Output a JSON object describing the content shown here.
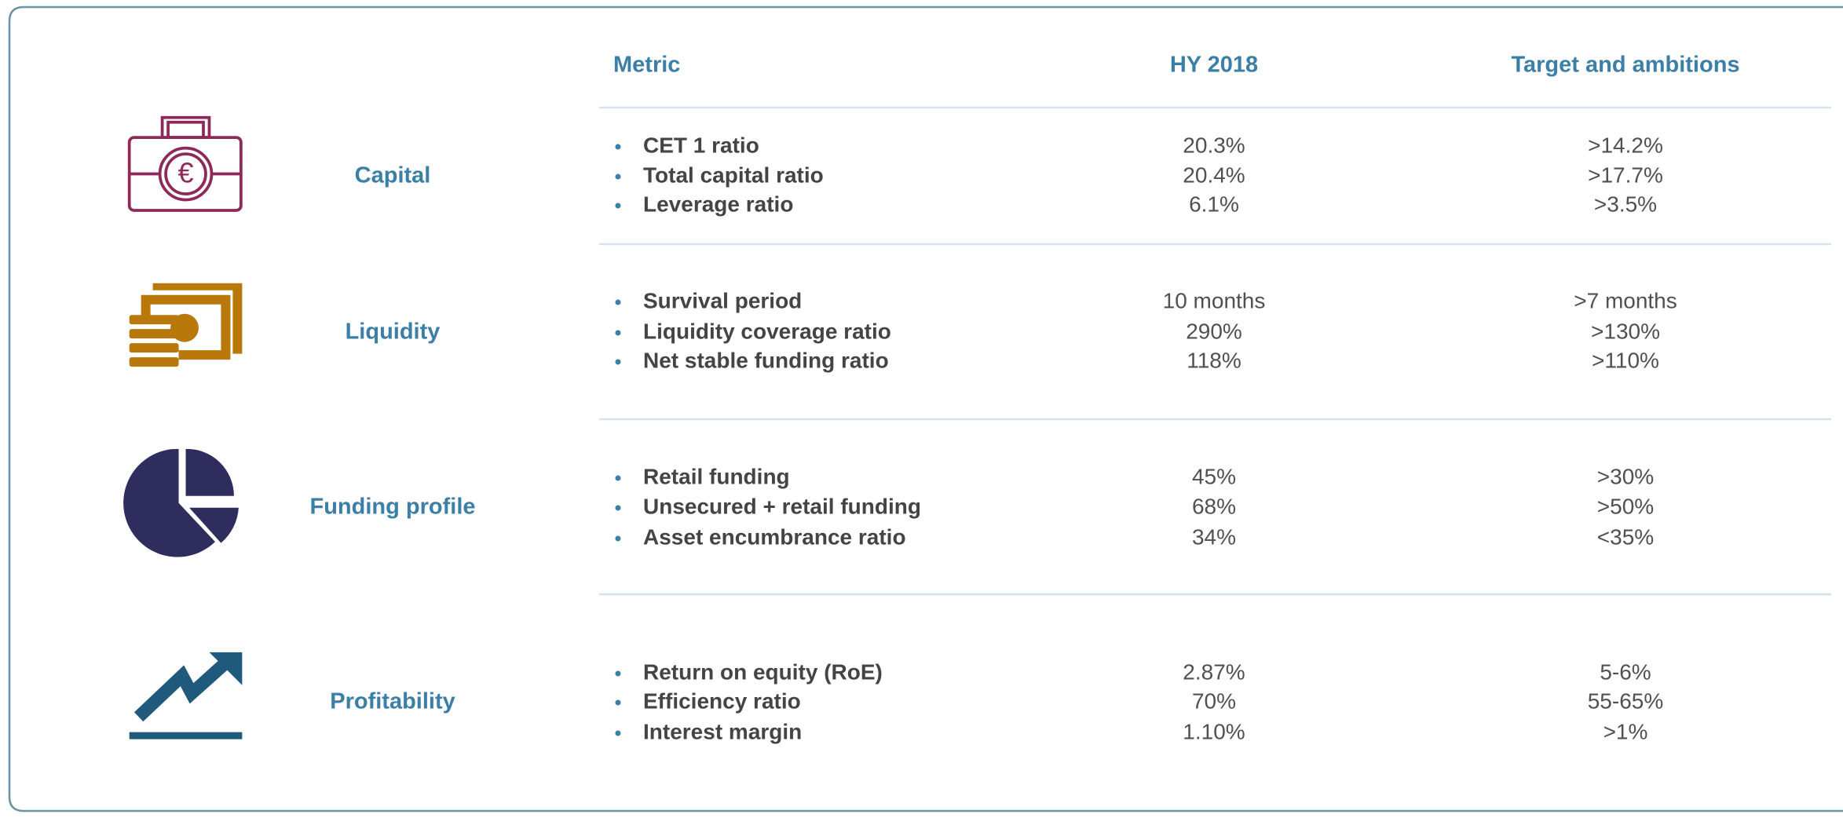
{
  "header": {
    "metric": "Metric",
    "hy": "HY 2018",
    "target": "Target and ambitions"
  },
  "sections": [
    {
      "label": "Capital",
      "rows": [
        [
          "CET 1 ratio",
          "20.3%",
          ">14.2%"
        ],
        [
          "Total capital ratio",
          "20.4%",
          ">17.7%"
        ],
        [
          "Leverage ratio",
          "6.1%",
          ">3.5%"
        ]
      ]
    },
    {
      "label": "Liquidity",
      "rows": [
        [
          "Survival period",
          "10 months",
          ">7 months"
        ],
        [
          "Liquidity coverage ratio",
          "290%",
          ">130%"
        ],
        [
          "Net stable funding ratio",
          "118%",
          ">110%"
        ]
      ]
    },
    {
      "label": "Funding profile",
      "rows": [
        [
          "Retail funding",
          "45%",
          ">30%"
        ],
        [
          "Unsecured + retail funding",
          "68%",
          ">50%"
        ],
        [
          "Asset encumbrance ratio",
          "34%",
          "<35%"
        ]
      ]
    },
    {
      "label": "Profitability",
      "rows": [
        [
          "Return on equity (RoE)",
          "2.87%",
          "5-6%"
        ],
        [
          "Efficiency ratio",
          "70%",
          "55-65%"
        ],
        [
          "Interest margin",
          "1.10%",
          ">1%"
        ]
      ]
    }
  ]
}
